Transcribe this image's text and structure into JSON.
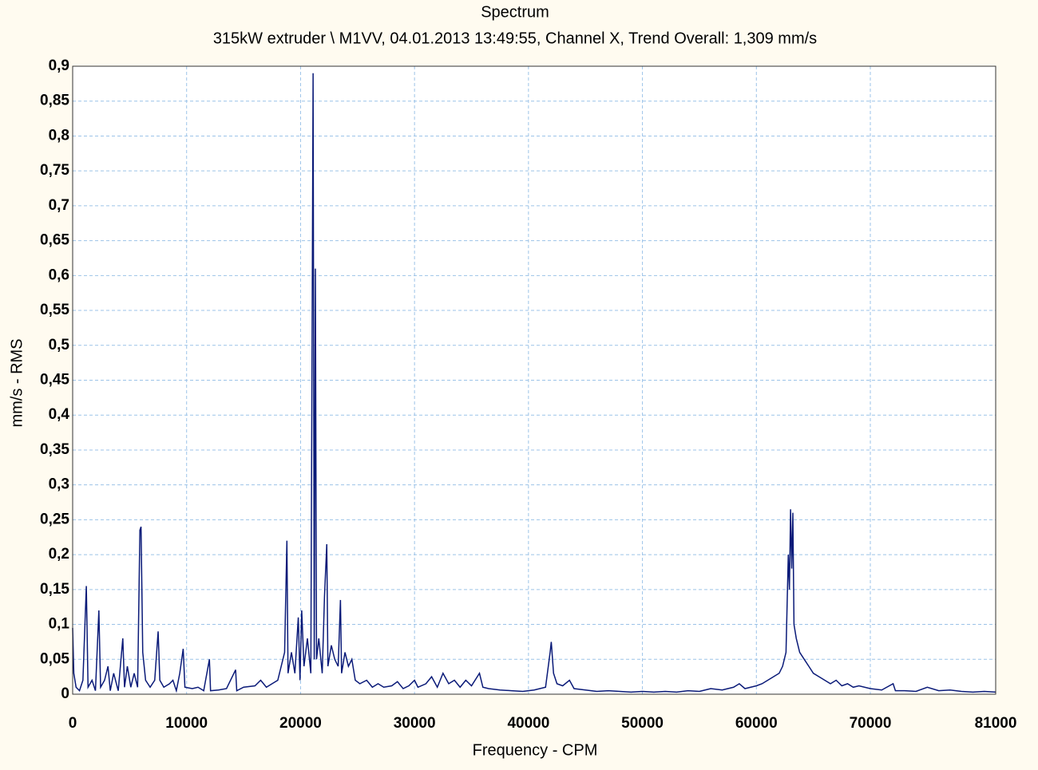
{
  "chart_data": {
    "type": "line",
    "title": "Spectrum",
    "subtitle": "315kW extruder \\ M1VV, 04.01.2013 13:49:55, Channel X, Trend Overall: 1,309 mm/s",
    "xlabel": "Frequency - CPM",
    "ylabel": "mm/s - RMS",
    "color": "#0a1a78",
    "grid": true,
    "xlim": [
      0,
      81000
    ],
    "ylim": [
      0,
      0.9
    ],
    "xticks": [
      0,
      10000,
      20000,
      30000,
      40000,
      50000,
      60000,
      70000,
      81000
    ],
    "yticks": [
      0,
      {
        "value": 0.05,
        "label": "0,05"
      },
      {
        "value": 0.1,
        "label": "0,1"
      },
      {
        "value": 0.15,
        "label": "0,15"
      },
      {
        "value": 0.2,
        "label": "0,2"
      },
      {
        "value": 0.25,
        "label": "0,25"
      },
      {
        "value": 0.3,
        "label": "0,3"
      },
      {
        "value": 0.35,
        "label": "0,35"
      },
      {
        "value": 0.4,
        "label": "0,4"
      },
      {
        "value": 0.45,
        "label": "0,45"
      },
      {
        "value": 0.5,
        "label": "0,5"
      },
      {
        "value": 0.55,
        "label": "0,55"
      },
      {
        "value": 0.6,
        "label": "0,6"
      },
      {
        "value": 0.65,
        "label": "0,65"
      },
      {
        "value": 0.7,
        "label": "0,7"
      },
      {
        "value": 0.75,
        "label": "0,75"
      },
      {
        "value": 0.8,
        "label": "0,8"
      },
      {
        "value": 0.85,
        "label": "0,85"
      },
      {
        "value": 0.9,
        "label": "0,9"
      }
    ],
    "x": [
      0,
      100,
      300,
      600,
      900,
      1200,
      1350,
      1700,
      2000,
      2300,
      2450,
      2800,
      3100,
      3300,
      3600,
      4000,
      4400,
      4550,
      4800,
      5100,
      5400,
      5700,
      5900,
      6000,
      6150,
      6400,
      6800,
      7200,
      7500,
      7650,
      8000,
      8500,
      8800,
      9100,
      9400,
      9700,
      9850,
      10500,
      11000,
      11500,
      12000,
      12100,
      12800,
      13500,
      14300,
      14400,
      15000,
      16000,
      16500,
      17000,
      17500,
      18000,
      18300,
      18600,
      18800,
      18900,
      19200,
      19500,
      19800,
      19950,
      20100,
      20300,
      20600,
      20900,
      21100,
      21200,
      21300,
      21400,
      21600,
      21900,
      22100,
      22300,
      22400,
      22700,
      23000,
      23300,
      23500,
      23600,
      23900,
      24200,
      24500,
      24800,
      25200,
      25800,
      26300,
      26800,
      27300,
      28000,
      28500,
      29000,
      29500,
      30000,
      30300,
      31000,
      31500,
      32000,
      32500,
      33000,
      33500,
      34000,
      34500,
      35000,
      35700,
      36000,
      36500,
      37500,
      38500,
      39500,
      40500,
      41500,
      41900,
      42000,
      42200,
      42500,
      43000,
      43600,
      44000,
      45000,
      46000,
      47000,
      48000,
      49000,
      50000,
      51000,
      52000,
      53000,
      54000,
      55000,
      56000,
      57000,
      58000,
      58500,
      59000,
      60000,
      60500,
      61000,
      61500,
      62000,
      62300,
      62600,
      62800,
      62900,
      63000,
      63100,
      63200,
      63300,
      63500,
      63800,
      64200,
      64600,
      65000,
      65500,
      66000,
      66500,
      67000,
      67500,
      68000,
      68500,
      69000,
      70000,
      71000,
      72000,
      72200,
      73000,
      74000,
      75000,
      76000,
      77000,
      78000,
      79000,
      80000,
      81000
    ],
    "values": [
      0.095,
      0.03,
      0.01,
      0.005,
      0.02,
      0.155,
      0.01,
      0.02,
      0.005,
      0.12,
      0.01,
      0.02,
      0.04,
      0.005,
      0.03,
      0.005,
      0.08,
      0.01,
      0.04,
      0.01,
      0.03,
      0.01,
      0.235,
      0.24,
      0.06,
      0.02,
      0.01,
      0.02,
      0.09,
      0.02,
      0.01,
      0.015,
      0.02,
      0.005,
      0.03,
      0.065,
      0.01,
      0.008,
      0.01,
      0.005,
      0.05,
      0.005,
      0.006,
      0.008,
      0.035,
      0.005,
      0.01,
      0.012,
      0.02,
      0.01,
      0.015,
      0.02,
      0.04,
      0.06,
      0.22,
      0.03,
      0.06,
      0.03,
      0.11,
      0.02,
      0.12,
      0.04,
      0.08,
      0.03,
      0.89,
      0.05,
      0.61,
      0.05,
      0.08,
      0.03,
      0.14,
      0.215,
      0.04,
      0.07,
      0.05,
      0.04,
      0.135,
      0.03,
      0.06,
      0.04,
      0.05,
      0.02,
      0.015,
      0.02,
      0.01,
      0.015,
      0.01,
      0.012,
      0.018,
      0.008,
      0.012,
      0.02,
      0.01,
      0.015,
      0.025,
      0.01,
      0.03,
      0.015,
      0.02,
      0.01,
      0.02,
      0.012,
      0.03,
      0.01,
      0.008,
      0.006,
      0.005,
      0.004,
      0.006,
      0.01,
      0.06,
      0.075,
      0.03,
      0.015,
      0.012,
      0.02,
      0.008,
      0.006,
      0.004,
      0.005,
      0.004,
      0.003,
      0.004,
      0.003,
      0.004,
      0.003,
      0.005,
      0.004,
      0.008,
      0.006,
      0.01,
      0.015,
      0.008,
      0.012,
      0.015,
      0.02,
      0.025,
      0.03,
      0.04,
      0.06,
      0.2,
      0.15,
      0.265,
      0.18,
      0.26,
      0.1,
      0.08,
      0.06,
      0.05,
      0.04,
      0.03,
      0.025,
      0.02,
      0.015,
      0.02,
      0.012,
      0.015,
      0.01,
      0.012,
      0.008,
      0.006,
      0.015,
      0.005,
      0.005,
      0.004,
      0.01,
      0.005,
      0.006,
      0.004,
      0.003,
      0.004,
      0.003
    ]
  }
}
